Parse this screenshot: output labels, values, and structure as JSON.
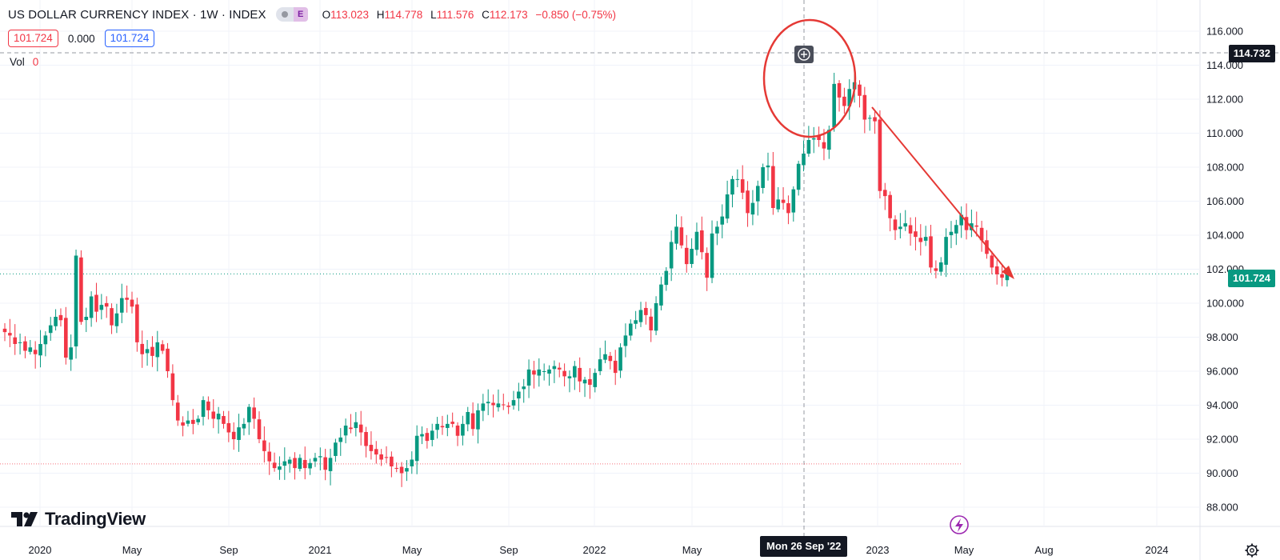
{
  "header": {
    "title": "US DOLLAR CURRENCY INDEX · 1W · INDEX",
    "badge": "E",
    "ohlc": {
      "o_label": "O",
      "o": "113.023",
      "h_label": "H",
      "h": "114.778",
      "l_label": "L",
      "l": "111.576",
      "c_label": "C",
      "c": "112.173",
      "change": "−0.850 (−0.75%)"
    }
  },
  "price_boxes": {
    "left": "101.724",
    "mid": "0.000",
    "right": "101.724"
  },
  "volume": {
    "label": "Vol",
    "value": "0"
  },
  "brand": "TradingView",
  "crosshair": {
    "price_tag": "114.732",
    "date_tag": "Mon 26 Sep '22"
  },
  "last_price_tag": "101.724",
  "colors": {
    "up": "#089981",
    "down": "#f23645",
    "annotation": "#e53935",
    "text": "#131722"
  },
  "chart_data": {
    "type": "candlestick",
    "title": "US DOLLAR CURRENCY INDEX",
    "interval": "1W",
    "ylim": [
      87,
      116.5
    ],
    "y_ticks": [
      "116.000",
      "114.000",
      "112.000",
      "110.000",
      "108.000",
      "106.000",
      "104.000",
      "102.000",
      "100.000",
      "98.000",
      "96.000",
      "94.000",
      "92.000",
      "90.000",
      "88.000"
    ],
    "x_ticks": [
      "2020",
      "May",
      "Sep",
      "2021",
      "May",
      "Sep",
      "2022",
      "May",
      "Sep",
      "2023",
      "May",
      "Aug",
      "2024"
    ],
    "close_series": [
      98.3,
      98.1,
      97.6,
      97.7,
      97.2,
      97.4,
      97.0,
      97.6,
      98.1,
      98.7,
      99.2,
      99.0,
      96.8,
      97.4,
      102.8,
      98.9,
      99.2,
      100.4,
      99.5,
      99.9,
      99.8,
      98.7,
      99.4,
      100.3,
      100.2,
      99.8,
      97.7,
      97.0,
      97.3,
      96.9,
      97.7,
      97.2,
      96.0,
      94.3,
      93.1,
      92.8,
      93.1,
      92.9,
      93.2,
      94.3,
      93.7,
      93.2,
      93.5,
      92.9,
      92.4,
      92.0,
      92.7,
      92.9,
      93.9,
      93.2,
      92.0,
      91.3,
      90.7,
      90.3,
      90.4,
      90.7,
      90.8,
      90.3,
      90.9,
      90.3,
      90.6,
      90.9,
      91.0,
      90.2,
      90.9,
      91.8,
      92.1,
      92.8,
      92.6,
      93.0,
      92.4,
      91.6,
      91.3,
      91.1,
      90.8,
      90.9,
      90.4,
      90.3,
      90.0,
      90.3,
      90.8,
      92.2,
      92.3,
      91.9,
      92.5,
      92.9,
      92.7,
      92.9,
      92.9,
      92.2,
      92.9,
      93.6,
      92.6,
      93.7,
      94.1,
      94.2,
      94.0,
      94.1,
      94.0,
      93.9,
      94.3,
      94.8,
      95.1,
      96.1,
      95.8,
      96.1,
      96.0,
      96.1,
      96.3,
      96.1,
      95.7,
      95.7,
      96.3,
      95.4,
      95.5,
      95.2,
      95.9,
      96.7,
      97.0,
      96.6,
      95.9,
      97.4,
      98.1,
      98.8,
      99.0,
      99.6,
      99.3,
      98.4,
      100.0,
      101.1,
      101.9,
      103.6,
      104.5,
      103.4,
      102.3,
      103.2,
      104.2,
      103.0,
      101.5,
      104.1,
      104.5,
      105.1,
      106.4,
      107.3,
      107.3,
      106.5,
      105.3,
      105.9,
      106.9,
      108.0,
      108.1,
      105.6,
      106.1,
      105.9,
      105.3,
      106.7,
      108.2,
      108.8,
      109.6,
      109.7,
      109.6,
      109.1,
      110.2,
      112.9,
      112.1,
      111.6,
      112.6,
      113.0,
      112.2,
      110.8,
      110.9,
      110.7,
      106.6,
      106.3,
      105.0,
      104.3,
      104.5,
      104.7,
      104.1,
      103.9,
      103.6,
      103.9,
      102.1,
      101.9,
      102.4,
      103.9,
      104.2,
      104.6,
      105.2,
      104.3,
      104.7,
      104.5,
      103.7,
      102.9,
      102.1,
      101.7,
      101.5,
      101.7
    ]
  },
  "annotations": [
    {
      "kind": "ellipse",
      "label": "peak-highlight"
    },
    {
      "kind": "arrow",
      "label": "downtrend-projection"
    }
  ]
}
